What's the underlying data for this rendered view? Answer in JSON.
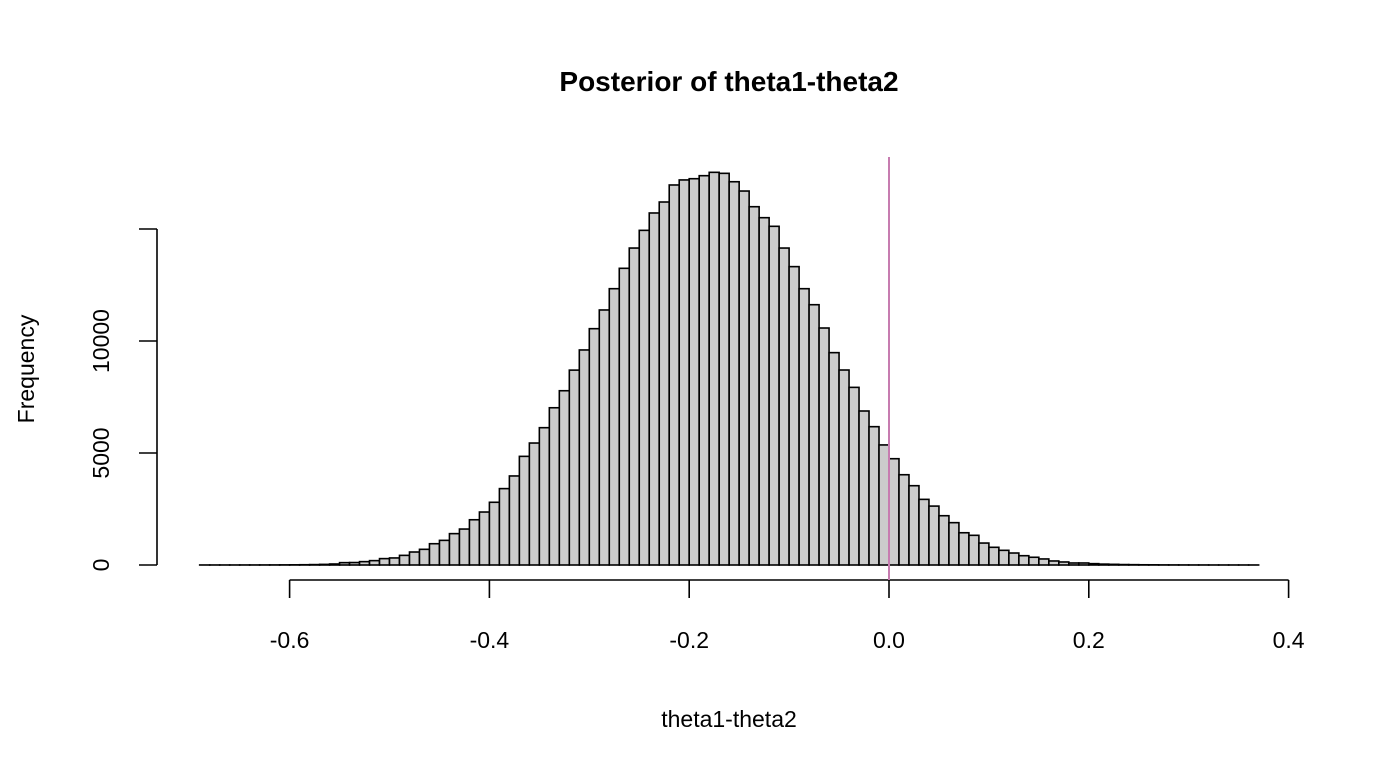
{
  "chart_data": {
    "type": "bar",
    "title": "Posterior of theta1-theta2",
    "xlabel": "theta1-theta2",
    "ylabel": "Frequency",
    "bin_start": -0.69,
    "bin_width": 0.01,
    "values": [
      1,
      1,
      1,
      1,
      2,
      2,
      3,
      4,
      6,
      8,
      12,
      18,
      28,
      45,
      105,
      110,
      150,
      195,
      285,
      315,
      430,
      580,
      700,
      950,
      1100,
      1400,
      1605,
      2020,
      2365,
      2800,
      3410,
      3975,
      4850,
      5445,
      6130,
      7020,
      7780,
      8700,
      9600,
      10550,
      11385,
      12335,
      13245,
      14150,
      14940,
      15715,
      16205,
      16965,
      17190,
      17245,
      17380,
      17530,
      17485,
      17110,
      16695,
      15995,
      15505,
      15120,
      14150,
      13320,
      12335,
      11620,
      10580,
      9480,
      8705,
      7930,
      6875,
      6175,
      5360,
      4745,
      4030,
      3540,
      2930,
      2630,
      2200,
      1890,
      1440,
      1325,
      980,
      790,
      655,
      535,
      415,
      345,
      270,
      180,
      135,
      90,
      90,
      60,
      40,
      30,
      20,
      15,
      10,
      8,
      5,
      4,
      3,
      2,
      2,
      1,
      1,
      1,
      1,
      1
    ],
    "xlim": [
      -0.6,
      0.4
    ],
    "ylim": [
      0,
      15000
    ],
    "xticks": [
      -0.6,
      -0.4,
      -0.2,
      0.0,
      0.2,
      0.4
    ],
    "xtick_labels": [
      "-0.6",
      "-0.4",
      "-0.2",
      "0.0",
      "0.2",
      "0.4"
    ],
    "yticks": [
      0,
      5000,
      10000,
      15000
    ],
    "ytick_labels": [
      "0",
      "5000",
      "10000",
      ""
    ],
    "reference_line": {
      "x": 0.0,
      "color": "#c77cb0"
    },
    "bar_fill": "#cccccc",
    "grid": false
  }
}
